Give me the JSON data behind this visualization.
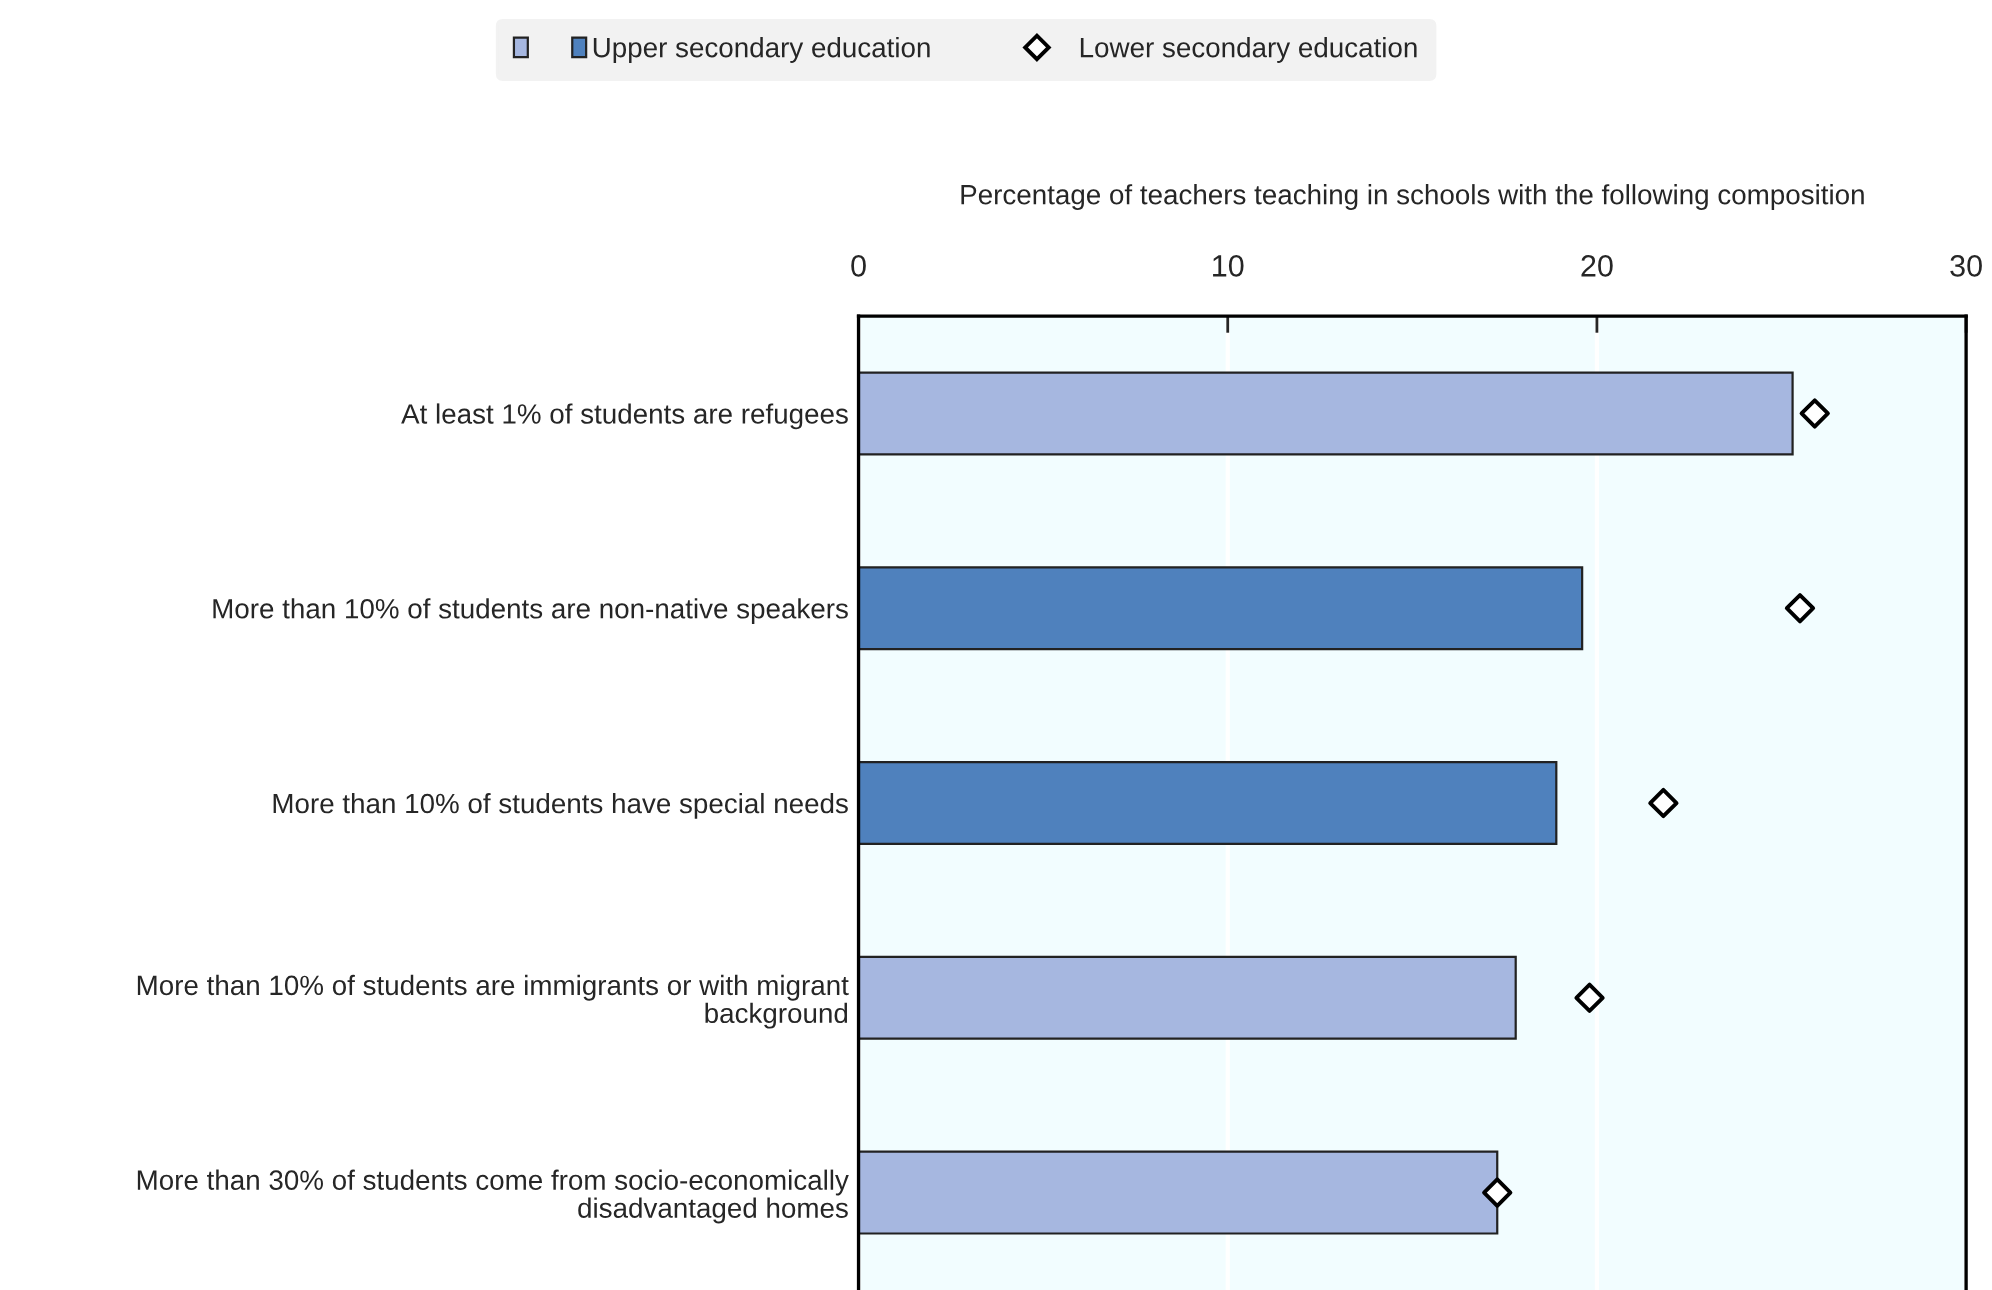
{
  "chart_data": {
    "type": "bar",
    "orientation": "horizontal",
    "xlabel": "Percentage of teachers teaching in schools with the following composition",
    "categories": [
      "At least 1% of students are refugees",
      "More than 10% of students are non-native speakers",
      "More than 10% of students have special needs",
      "More than 10% of students are immigrants or with migrant background",
      "More than 30% of students come from socio-economically disadvantaged homes"
    ],
    "series": [
      {
        "name": "Upper secondary education",
        "color": "#4f81bd",
        "colors": [
          "#a6b7e0",
          "#4f81bd",
          "#4f81bd",
          "#a6b7e0",
          "#a6b7e0"
        ],
        "values": [
          25.3,
          19.6,
          18.9,
          17.8,
          17.3
        ]
      },
      {
        "name": "Lower secondary education",
        "type": "scatter",
        "color": "#000000",
        "marker": "diamond",
        "values": [
          25.9,
          25.5,
          21.8,
          19.8,
          17.3
        ]
      }
    ],
    "xlim": [
      0,
      30
    ],
    "xticks": [
      0,
      10,
      20,
      30
    ],
    "grid": "x",
    "legend": "top"
  }
}
